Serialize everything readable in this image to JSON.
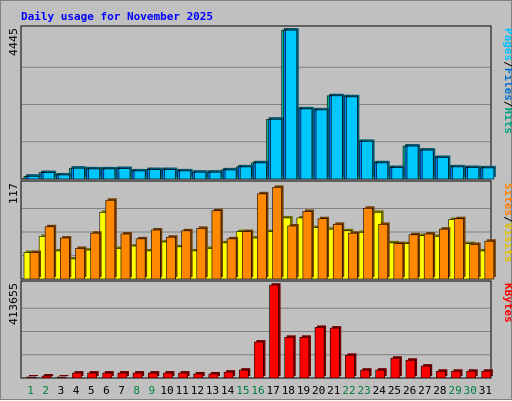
{
  "chart_data": {
    "type": "bar",
    "title": "Daily usage for November 2025",
    "categories": [
      "1",
      "2",
      "3",
      "4",
      "5",
      "6",
      "7",
      "8",
      "9",
      "10",
      "11",
      "12",
      "13",
      "14",
      "15",
      "16",
      "17",
      "18",
      "19",
      "20",
      "21",
      "22",
      "23",
      "24",
      "25",
      "26",
      "27",
      "28",
      "29",
      "30",
      "31"
    ],
    "weekend_days": [
      "1",
      "2",
      "8",
      "9",
      "15",
      "16",
      "22",
      "23",
      "29",
      "30"
    ],
    "panels": [
      {
        "name": "hits-files-pages",
        "max_label": "4445",
        "ylim": [
          0,
          4445
        ],
        "legend": [
          {
            "text": "Pages",
            "color": "#00c0ff"
          },
          {
            "text": "/",
            "color": "#000000"
          },
          {
            "text": "Files",
            "color": "#0070d0"
          },
          {
            "text": "/",
            "color": "#000000"
          },
          {
            "text": "Hits",
            "color": "#00a080"
          }
        ],
        "series": [
          {
            "name": "Hits",
            "color": "#00c090",
            "values": [
              80,
              190,
              120,
              320,
              300,
              300,
              310,
              240,
              280,
              280,
              240,
              200,
              200,
              270,
              360,
              480,
              1780,
              4440,
              2090,
              2060,
              2480,
              2450,
              1120,
              480,
              340,
              980,
              860,
              640,
              360,
              340,
              330
            ]
          },
          {
            "name": "Files",
            "color": "#0080ff",
            "values": [
              80,
              190,
              120,
              320,
              300,
              300,
              310,
              240,
              280,
              280,
              240,
              200,
              200,
              270,
              360,
              480,
              1780,
              4440,
              2090,
              2060,
              2480,
              2450,
              1120,
              480,
              340,
              980,
              860,
              640,
              360,
              340,
              330
            ]
          },
          {
            "name": "Pages",
            "color": "#00c8ff",
            "values": [
              80,
              190,
              120,
              320,
              300,
              300,
              310,
              240,
              280,
              280,
              240,
              200,
              200,
              270,
              360,
              480,
              1780,
              4440,
              2090,
              2060,
              2480,
              2450,
              1120,
              480,
              340,
              980,
              860,
              640,
              360,
              340,
              330
            ]
          }
        ]
      },
      {
        "name": "visits-sites",
        "max_label": "117",
        "ylim": [
          0,
          117
        ],
        "legend": [
          {
            "text": "Sites",
            "color": "#ff8000"
          },
          {
            "text": "/",
            "color": "#000000"
          },
          {
            "text": "Visits",
            "color": "#e0c000"
          }
        ],
        "series": [
          {
            "name": "Visits",
            "color": "#ffff00",
            "values": [
              33,
              53,
              35,
              25,
              36,
              83,
              38,
              41,
              35,
              46,
              40,
              35,
              38,
              45,
              59,
              51,
              59,
              76,
              76,
              64,
              62,
              60,
              58,
              83,
              45,
              44,
              54,
              53,
              74,
              44,
              35
            ]
          },
          {
            "name": "Sites",
            "color": "#ff8800",
            "values": [
              33,
              65,
              51,
              38,
              57,
              98,
              56,
              50,
              61,
              52,
              60,
              63,
              85,
              50,
              59,
              106,
              114,
              66,
              84,
              75,
              68,
              57,
              88,
              68,
              44,
              55,
              56,
              62,
              75,
              43,
              47
            ]
          }
        ]
      },
      {
        "name": "kbytes",
        "max_label": "413655",
        "ylim": [
          0,
          413655
        ],
        "legend": [
          {
            "text": "KBytes",
            "color": "#ff0000"
          }
        ],
        "series": [
          {
            "name": "KBytes",
            "color": "#ff0000",
            "values": [
              4500,
              9000,
              4500,
              22000,
              22000,
              22000,
              22000,
              22000,
              22000,
              22000,
              22000,
              18000,
              18000,
              26000,
              35000,
              160000,
              413000,
              181000,
              181000,
              225000,
              222000,
              101000,
              35000,
              35000,
              88000,
              79000,
              53000,
              30000,
              30000,
              30000,
              30000
            ]
          }
        ]
      }
    ]
  }
}
